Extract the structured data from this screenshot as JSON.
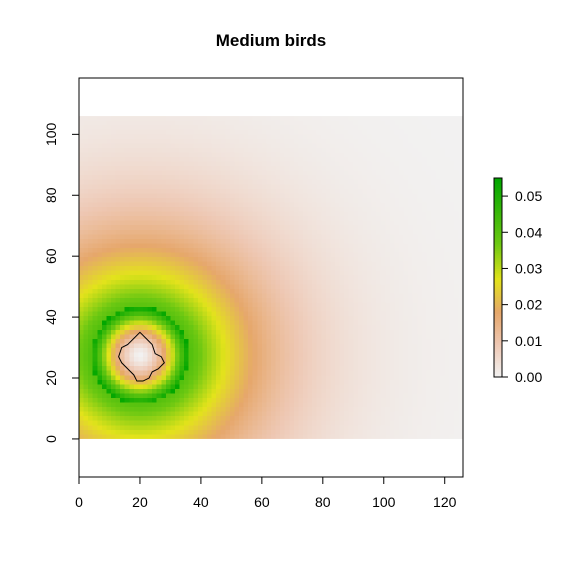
{
  "chart_data": {
    "type": "heatmap",
    "title": "Medium birds",
    "xlabel": "",
    "ylabel": "",
    "xlim": [
      0,
      126
    ],
    "ylim": [
      -12.5,
      118.5
    ],
    "raster_extent": {
      "x": [
        0,
        126
      ],
      "y": [
        0,
        106
      ]
    },
    "x_ticks": [
      0,
      20,
      40,
      60,
      80,
      100,
      120
    ],
    "y_ticks": [
      0,
      20,
      40,
      60,
      80,
      100
    ],
    "legend": {
      "position": "right",
      "range": [
        0,
        0.055
      ],
      "ticks": [
        "0.00",
        "0.01",
        "0.02",
        "0.03",
        "0.04",
        "0.05"
      ],
      "tick_values": [
        0,
        0.01,
        0.02,
        0.03,
        0.04,
        0.05
      ]
    },
    "colorscale": [
      {
        "value": 0.0,
        "color": "#f2f2f2"
      },
      {
        "value": 0.009,
        "color": "#eec8b4"
      },
      {
        "value": 0.018,
        "color": "#e6a76b"
      },
      {
        "value": 0.027,
        "color": "#e3e31b"
      },
      {
        "value": 0.037,
        "color": "#6cc812"
      },
      {
        "value": 0.055,
        "color": "#00a600"
      }
    ],
    "hotspot": {
      "center": [
        20,
        27
      ],
      "core_value": 0.0,
      "peak_value": 0.055,
      "peak_radius_x": 16,
      "peak_radius_y": 16
    },
    "outlined_region": {
      "color": "#000000",
      "polygon": [
        [
          20,
          35
        ],
        [
          22,
          33
        ],
        [
          24,
          31
        ],
        [
          25,
          28
        ],
        [
          27,
          27
        ],
        [
          28,
          25
        ],
        [
          26,
          23
        ],
        [
          24,
          22
        ],
        [
          23,
          20
        ],
        [
          21,
          19
        ],
        [
          19,
          19
        ],
        [
          18,
          21
        ],
        [
          16,
          23
        ],
        [
          14,
          25
        ],
        [
          13,
          27
        ],
        [
          14,
          30
        ],
        [
          16,
          31
        ],
        [
          18,
          33
        ]
      ]
    },
    "grid": false
  }
}
